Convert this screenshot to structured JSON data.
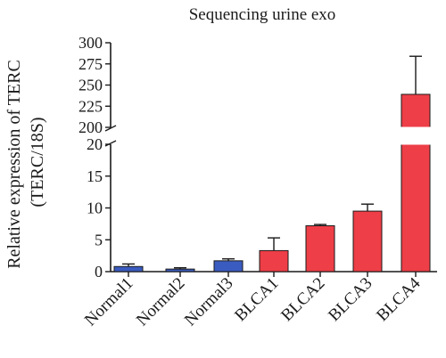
{
  "chart_data": {
    "type": "bar",
    "title": "Sequencing urine exo",
    "ylabel_line1": "Relative expression of TERC",
    "ylabel_line2": "(TERC/18S)",
    "xlabel": "",
    "categories": [
      "Normal1",
      "Normal2",
      "Normal3",
      "BLCA1",
      "BLCA2",
      "BLCA3",
      "BLCA4"
    ],
    "values": [
      0.8,
      0.4,
      1.7,
      3.3,
      7.2,
      9.5,
      239
    ],
    "errors": [
      0.4,
      0.2,
      0.3,
      2.0,
      0.2,
      1.1,
      45
    ],
    "group": [
      "normal",
      "normal",
      "normal",
      "blca",
      "blca",
      "blca",
      "blca"
    ],
    "y_axis_break": true,
    "ylim_lower": [
      0,
      20
    ],
    "ylim_upper": [
      200,
      300
    ],
    "yticks_lower": [
      "0",
      "5",
      "10",
      "15",
      "20"
    ],
    "yticks_upper": [
      "200",
      "225",
      "250",
      "275",
      "300"
    ],
    "colors": {
      "normal": "#3a5bbf",
      "blca": "#ee3e47"
    },
    "grid": false,
    "legend": "none"
  }
}
